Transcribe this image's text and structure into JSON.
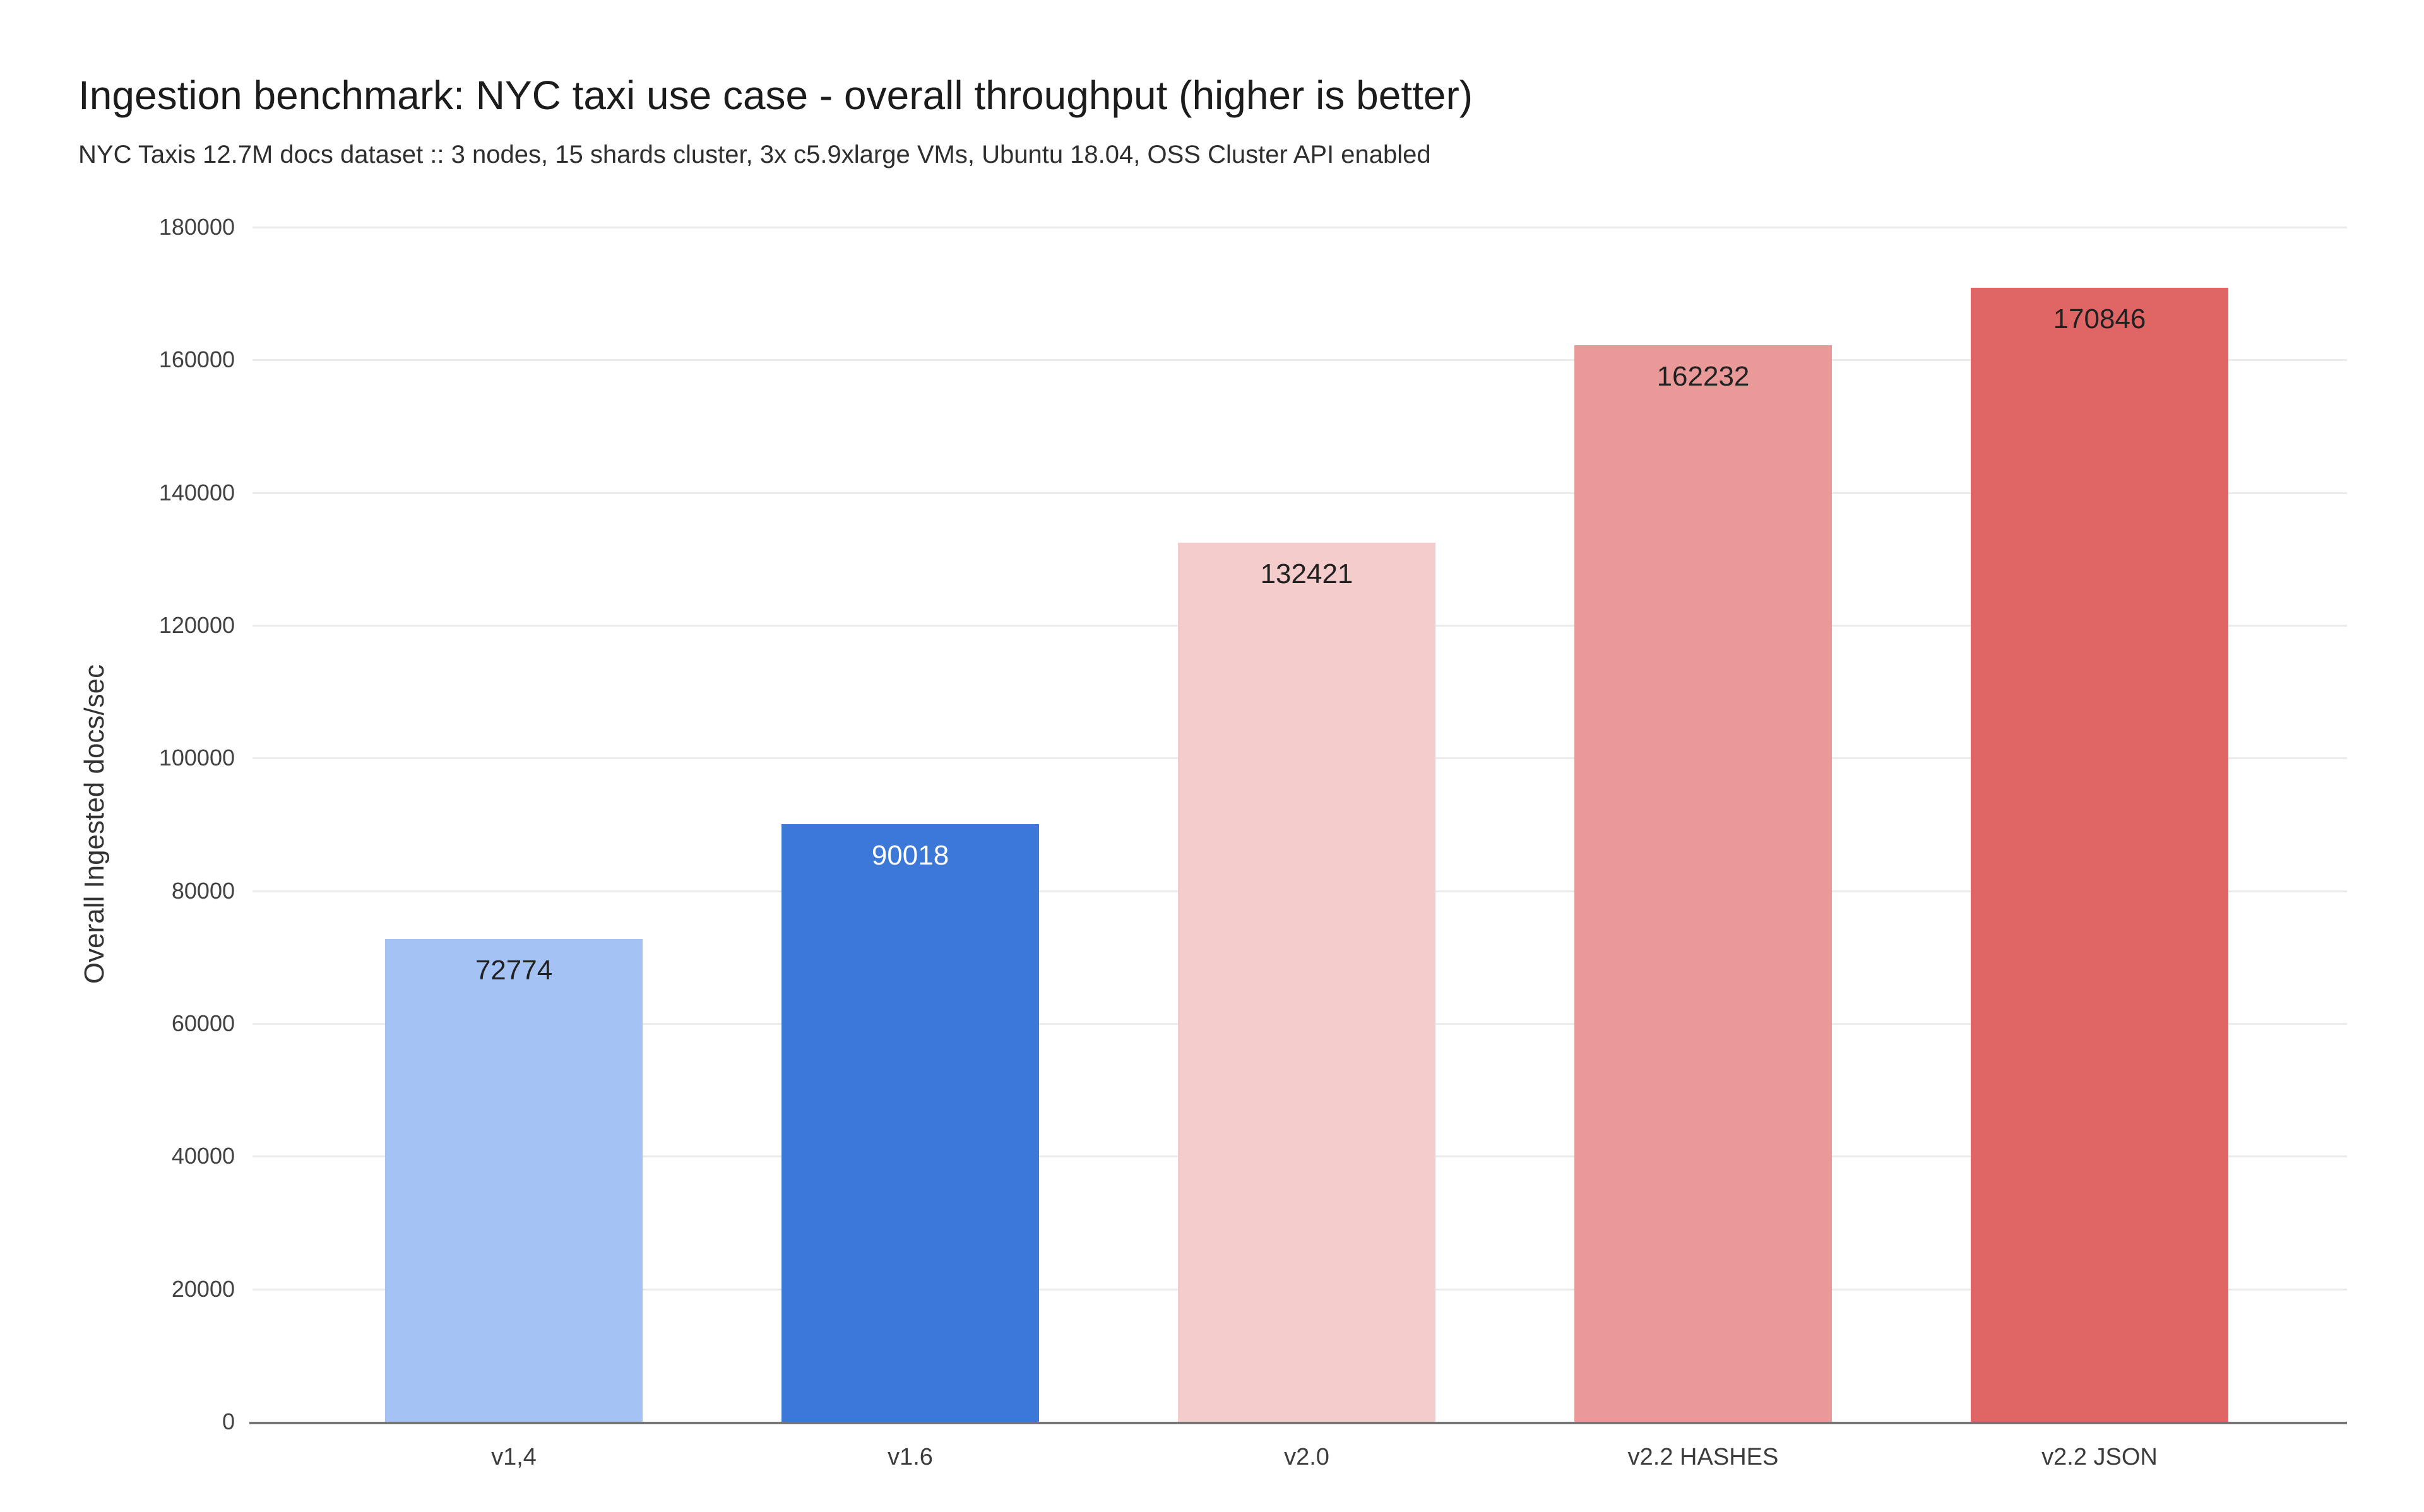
{
  "chart_data": {
    "type": "bar",
    "title": "Ingestion benchmark: NYC taxi use case - overall throughput (higher is better)",
    "subtitle": "NYC Taxis 12.7M docs dataset :: 3 nodes, 15 shards cluster, 3x c5.9xlarge VMs, Ubuntu 18.04, OSS Cluster API enabled",
    "xlabel": "",
    "ylabel": "Overall Ingested docs/sec",
    "categories": [
      "v1,4",
      "v1.6",
      "v2.0",
      "v2.2 HASHES",
      "v2.2 JSON"
    ],
    "values": [
      72774,
      90018,
      132421,
      162232,
      170846
    ],
    "value_labels": [
      "72774",
      "90018",
      "132421",
      "162232",
      "170846"
    ],
    "bar_colors": [
      "#a4c2f4",
      "#3c78d8",
      "#f4cccc",
      "#ea9999",
      "#e06666"
    ],
    "value_label_colors": [
      "#212121",
      "#ffffff",
      "#212121",
      "#212121",
      "#212121"
    ],
    "ylim": [
      0,
      180000
    ],
    "ytick_step": 20000,
    "yticks": [
      0,
      20000,
      40000,
      60000,
      80000,
      100000,
      120000,
      140000,
      160000,
      180000
    ],
    "grid": true,
    "legend": "none",
    "colors": {
      "background": "#ffffff",
      "gridline": "#ebebeb",
      "baseline": "#757575",
      "tick_label": "#424242",
      "category_label": "#3c3c3c",
      "title_text": "#1c1c1c",
      "subtitle_text": "#2e2e2e",
      "y_axis_title_text": "#333333"
    }
  }
}
